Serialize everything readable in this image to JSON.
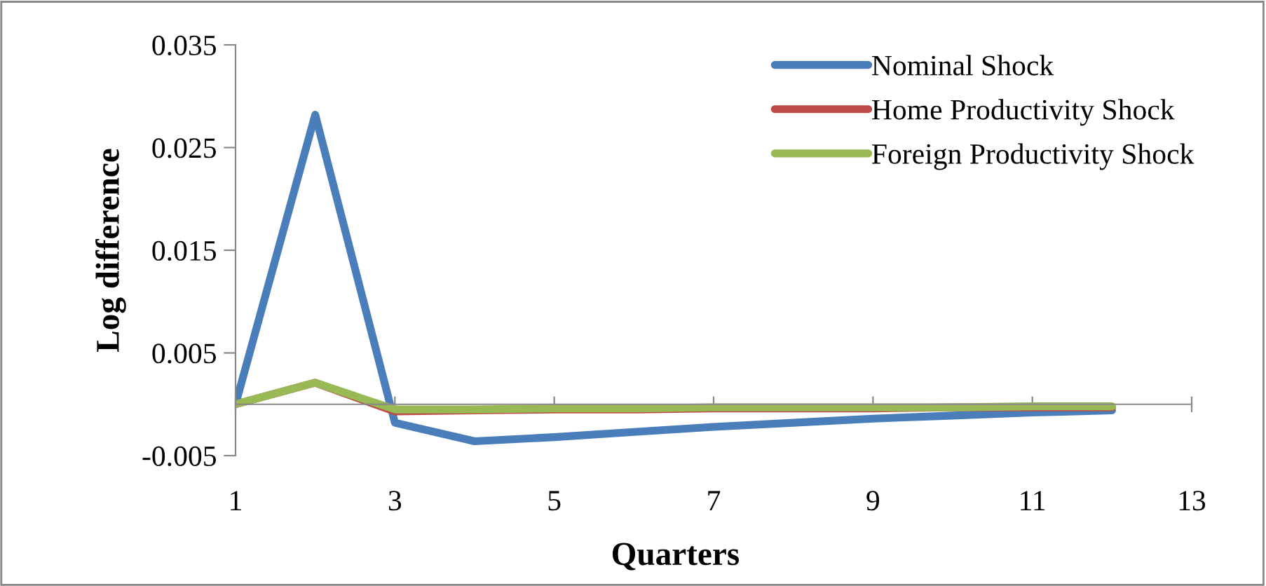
{
  "chart_data": {
    "type": "line",
    "xlabel": "Quarters",
    "ylabel": "Log difference",
    "x": [
      1,
      2,
      3,
      4,
      5,
      6,
      7,
      8,
      9,
      10,
      11,
      12
    ],
    "series": [
      {
        "name": "Nominal Shock",
        "color": "#4a7ebb",
        "values": [
          0,
          0.0282,
          -0.0018,
          -0.0036,
          -0.0032,
          -0.0027,
          -0.0022,
          -0.0018,
          -0.0014,
          -0.0011,
          -0.0008,
          -0.0006
        ]
      },
      {
        "name": "Home Productivity Shock",
        "color": "#be4b48",
        "values": [
          0,
          0.0021,
          -0.0007,
          -0.0006,
          -0.0005,
          -0.0005,
          -0.0004,
          -0.0004,
          -0.0004,
          -0.0003,
          -0.0003,
          -0.0003
        ]
      },
      {
        "name": "Foreign Productivity Shock",
        "color": "#98b954",
        "values": [
          0,
          0.0021,
          -0.0005,
          -0.0005,
          -0.0004,
          -0.0004,
          -0.0003,
          -0.0003,
          -0.0003,
          -0.0003,
          -0.0002,
          -0.0002
        ]
      }
    ],
    "xlim": [
      1,
      13
    ],
    "xticks": [
      1,
      3,
      5,
      7,
      9,
      11,
      13
    ],
    "ylim": [
      -0.005,
      0.035
    ],
    "yticks": [
      -0.005,
      0.005,
      0.015,
      0.025,
      0.035
    ],
    "grid": false,
    "legend": "top right",
    "line_style": "solid",
    "marker": "none"
  }
}
